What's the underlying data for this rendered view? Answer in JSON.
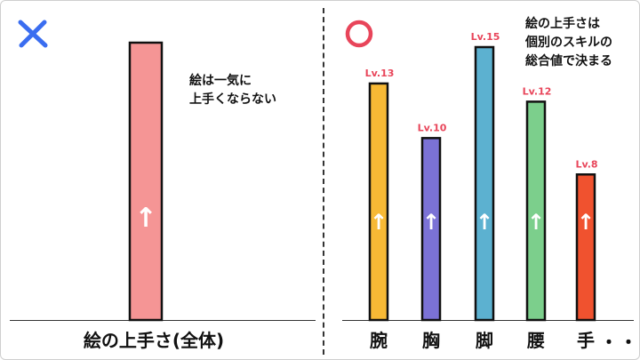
{
  "left": {
    "mark_color": "#3a6df0",
    "note": "絵は一気に\n上手くならない",
    "chart_data": {
      "type": "bar",
      "categories": [
        "絵の上手さ(全体)"
      ],
      "values": [
        100
      ],
      "bar_color": "#f59595",
      "arrow": "↑"
    }
  },
  "right": {
    "mark_color": "#e8455a",
    "note": "絵の上手さは\n個別のスキルの\n総合値で決まる",
    "ellipsis": "・・・",
    "chart_data": {
      "type": "bar",
      "categories": [
        "腕",
        "胸",
        "脚",
        "腰",
        "手"
      ],
      "series": [
        {
          "values": [
            13,
            10,
            15,
            12,
            8
          ],
          "data_labels": [
            "Lv.13",
            "Lv.10",
            "Lv.15",
            "Lv.12",
            "Lv.8"
          ],
          "colors": [
            "#f7b935",
            "#7b72d6",
            "#5cb1d0",
            "#7ccf8c",
            "#f0522f"
          ]
        }
      ],
      "label_color": "#e8455a",
      "arrow": "↑"
    }
  }
}
